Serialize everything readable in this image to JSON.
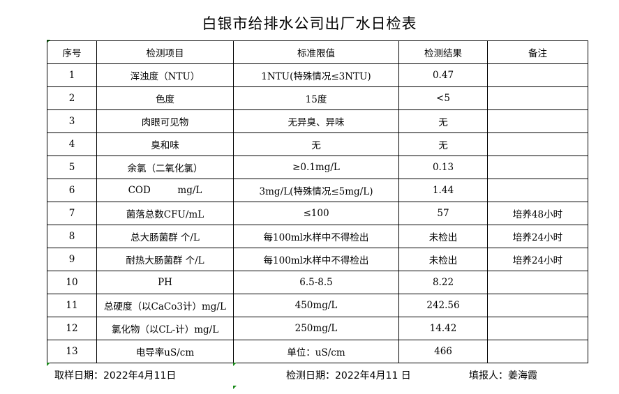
{
  "title": "白银市给排水公司出厂水日检表",
  "headers": [
    "序号",
    "检测项目",
    "标准限值",
    "检测结果",
    "备注"
  ],
  "rows": [
    [
      "1",
      "浑浊度（NTU）",
      "1NTU(特殊情况≤3NTU)",
      "0.47",
      ""
    ],
    [
      "2",
      "色度",
      "15度",
      "<5",
      ""
    ],
    [
      "3",
      "肉眼可见物",
      "无异臭、异味",
      "无",
      ""
    ],
    [
      "4",
      "臭和味",
      "无",
      "无",
      ""
    ],
    [
      "5",
      "余氯（二氧化氯）",
      "≥0.1mg/L",
      "0.13",
      ""
    ],
    [
      "6",
      "COD         mg/L",
      "3mg/L(特殊情况≤5mg/L)",
      "1.44",
      ""
    ],
    [
      "7",
      "菌落总数CFU/mL",
      "≤100",
      "57",
      "培养48小时"
    ],
    [
      "8",
      "总大肠菌群 个/L",
      "每100ml水样中不得检出",
      "未检出",
      "培养24小时"
    ],
    [
      "9",
      "耐热大肠菌群 个/L",
      "每100ml水样中不得检出",
      "未检出",
      "培养24小时"
    ],
    [
      "10",
      "PH",
      "6.5-8.5",
      "8.22",
      ""
    ],
    [
      "11",
      "总硬度（以CaCo3计）mg/L",
      "450mg/L",
      "242.56",
      ""
    ],
    [
      "12",
      "氯化物（以CL-计）mg/L",
      "250mg/L",
      "14.42",
      ""
    ],
    [
      "13",
      "电导率uS/cm",
      "单位：uS/cm",
      "466",
      ""
    ]
  ],
  "footer": {
    "sample_date": "取样日期：2022年4月11日",
    "test_date": "检测日期：2022年4月11 日",
    "reporter": "填报人：姜海霞"
  }
}
